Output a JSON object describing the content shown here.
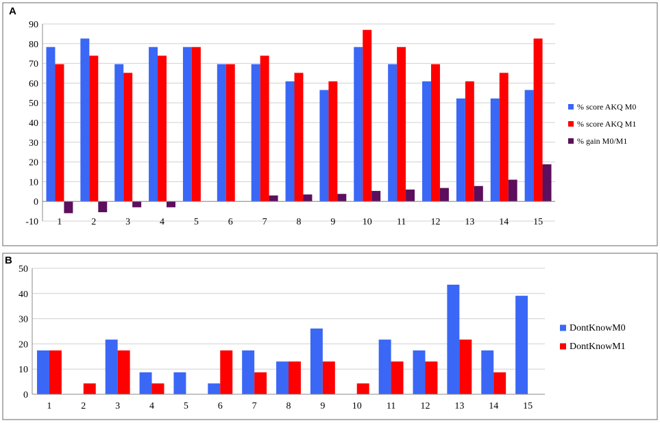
{
  "chart_data": [
    {
      "panel": "A",
      "type": "bar",
      "title": "",
      "xlabel": "",
      "ylabel": "",
      "ylim": [
        -10,
        90
      ],
      "yticks": [
        -10,
        0,
        10,
        20,
        30,
        40,
        50,
        60,
        70,
        80,
        90
      ],
      "grid": true,
      "legend_position": "right",
      "categories": [
        "1",
        "2",
        "3",
        "4",
        "5",
        "6",
        "7",
        "8",
        "9",
        "10",
        "11",
        "12",
        "13",
        "14",
        "15"
      ],
      "series": [
        {
          "name": "% score AKQ M0",
          "color": "#3a67f5",
          "values": [
            78.3,
            82.6,
            69.6,
            78.3,
            78.3,
            69.6,
            69.6,
            60.9,
            56.5,
            78.3,
            69.6,
            60.9,
            52.2,
            52.2,
            56.5
          ]
        },
        {
          "name": "% score AKQ M1",
          "color": "#ff0000",
          "values": [
            69.6,
            73.9,
            65.2,
            73.9,
            78.3,
            69.6,
            73.9,
            65.2,
            60.9,
            87.0,
            78.3,
            69.6,
            60.9,
            65.2,
            82.6
          ]
        },
        {
          "name": "% gain M0/M1",
          "color": "#5c0f5c",
          "values": [
            -6.0,
            -5.5,
            -3.0,
            -3.0,
            0,
            0,
            3.0,
            3.5,
            3.8,
            5.3,
            6.0,
            6.8,
            7.8,
            11.0,
            18.8
          ]
        }
      ]
    },
    {
      "panel": "B",
      "type": "bar",
      "title": "",
      "xlabel": "",
      "ylabel": "",
      "ylim": [
        0,
        50
      ],
      "yticks": [
        0,
        10,
        20,
        30,
        40,
        50
      ],
      "grid": true,
      "legend_position": "right",
      "categories": [
        "1",
        "2",
        "3",
        "4",
        "5",
        "6",
        "7",
        "8",
        "9",
        "10",
        "11",
        "12",
        "13",
        "14",
        "15"
      ],
      "series": [
        {
          "name": "DontKnowM0",
          "color": "#3a67f5",
          "values": [
            17.4,
            0,
            21.7,
            8.7,
            8.7,
            4.3,
            17.4,
            13.0,
            26.1,
            0,
            21.7,
            17.4,
            43.5,
            17.4,
            39.1
          ]
        },
        {
          "name": "DontKnowM1",
          "color": "#ff0000",
          "values": [
            17.4,
            4.3,
            17.4,
            4.3,
            0,
            17.4,
            8.7,
            13.0,
            13.0,
            4.3,
            13.0,
            13.0,
            21.7,
            8.7,
            0
          ]
        }
      ]
    }
  ]
}
